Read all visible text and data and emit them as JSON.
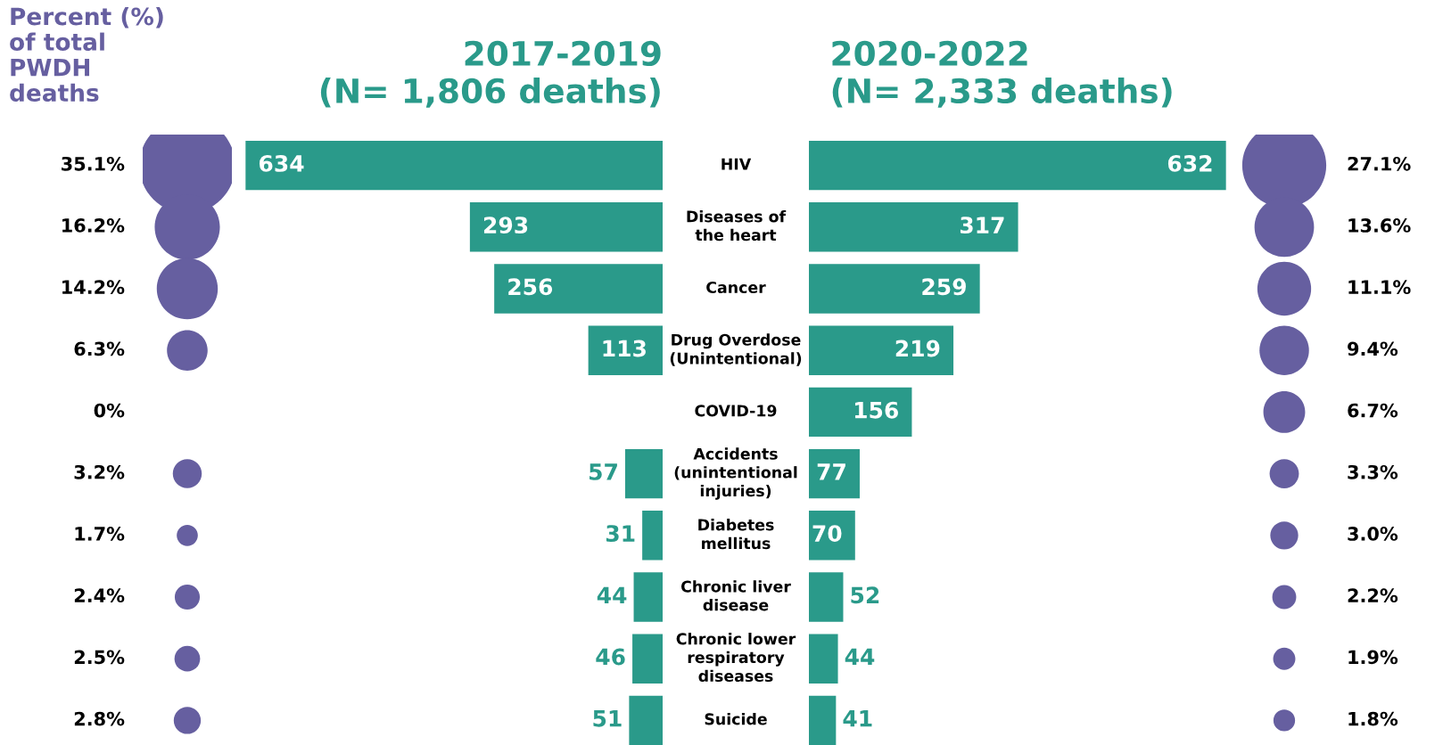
{
  "chart_data": [
    {
      "type": "other",
      "title": "Percent (%)\nof total\nPWDH\ndeaths",
      "categories": [
        null,
        null,
        null,
        null,
        null,
        null,
        null,
        null,
        null,
        null
      ],
      "values": [
        35.1,
        16.2,
        14.2,
        6.3,
        0,
        3.2,
        1.7,
        2.4,
        2.5,
        2.8
      ],
      "value_labels": [
        "35.1%",
        "16.2%",
        "14.2%",
        "6.3%",
        "0%",
        "3.2%",
        "1.7%",
        "2.4%",
        "2.5%",
        "2.8%"
      ],
      "color": "#665fa0"
    },
    {
      "type": "bar",
      "orientation": "horizontal",
      "title": "2017-2019\n(N= 1,806 deaths)",
      "categories": [
        "HIV",
        "Diseases of\nthe heart",
        "Cancer",
        "Drug Overdose\n(Unintentional)",
        "COVID-19",
        "Accidents\n(unintentional\ninjuries)",
        "Diabetes\nmellitus",
        "Chronic liver\ndisease",
        "Chronic lower\nrespiratory\ndiseases",
        "Suicide"
      ],
      "values": [
        634,
        293,
        256,
        113,
        0,
        57,
        31,
        44,
        46,
        51
      ],
      "value_labels": [
        "634",
        "293",
        "256",
        "113",
        null,
        "57",
        "31",
        "44",
        "46",
        "51"
      ],
      "color": "#2a9a8a"
    },
    {
      "type": "bar",
      "orientation": "horizontal",
      "title": "2020-2022\n(N= 2,333 deaths)",
      "categories": [
        null,
        null,
        null,
        null,
        null,
        null,
        null,
        null,
        null,
        null
      ],
      "values": [
        632,
        317,
        259,
        219,
        156,
        77,
        70,
        52,
        44,
        41
      ],
      "data_labels": true,
      "color": "#2a9a8a"
    },
    {
      "type": "other",
      "categories": [
        null,
        null,
        null,
        null,
        null,
        null,
        null,
        null,
        null,
        null
      ],
      "values": [
        27.1,
        13.6,
        11.1,
        9.4,
        6.7,
        3.3,
        3.0,
        2.2,
        1.9,
        1.8
      ],
      "value_labels": [
        "27.1%",
        "13.6%",
        "11.1%",
        "9.4%",
        "6.7%",
        "3.3%",
        "3.0%",
        "2.2%",
        "1.9%",
        "1.8%"
      ],
      "color": "#665fa0"
    }
  ]
}
